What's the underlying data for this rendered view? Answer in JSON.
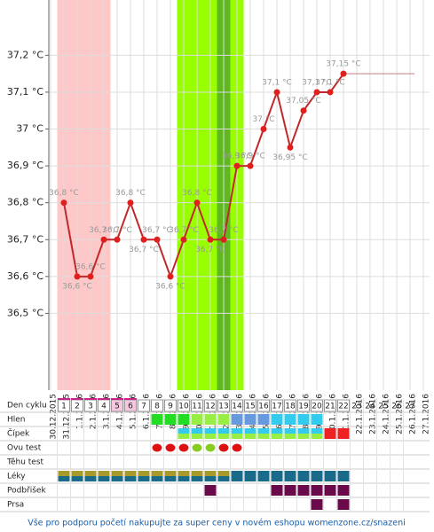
{
  "chart_data": {
    "type": "line",
    "categories": [
      "30.12.2015",
      "31.12.2015",
      "1.1.2016",
      "2.1.2016",
      "3.1.2016",
      "4.1.2016",
      "5.1.2016",
      "6.1.2016",
      "7.1.2016",
      "8.1.2016",
      "9.1.2016",
      "10.1.2016",
      "11.1.2016",
      "12.1.2016",
      "13.1.2016",
      "14.1.2016",
      "15.1.2016",
      "16.1.2016",
      "17.1.2016",
      "18.1.2016",
      "19.1.2016",
      "20.1.2016",
      "21.1.2016",
      "22.1.2016",
      "23.1.2016",
      "24.1.2016",
      "25.1.2016",
      "26.1.2016",
      "27.1.2016"
    ],
    "values": [
      null,
      36.8,
      36.6,
      36.6,
      36.7,
      36.7,
      36.8,
      36.7,
      36.7,
      36.6,
      36.7,
      36.8,
      36.7,
      36.7,
      36.9,
      36.9,
      37.0,
      37.1,
      36.95,
      37.05,
      37.1,
      37.1,
      37.15,
      null,
      null,
      null,
      null,
      null,
      null
    ],
    "value_labels": [
      null,
      "36,8 °C",
      "36,6 °C",
      "36,6 °C",
      "36,7 °C",
      "36,7 °C",
      "36,8 °C",
      "36,7 °C",
      "36,7 °C",
      "36,6 °C",
      "36,7 °C",
      "36,8 °C",
      "36,7 °C",
      "36,7 °C",
      "36,9 °C",
      "36,9 °C",
      "37 °C",
      "37,1 °C",
      "36,95 °C",
      "37,05 °C",
      "37,1 °C",
      "37,1 °C",
      "37,15 °C",
      null,
      null,
      null,
      null,
      null,
      null
    ],
    "color": "#c0282a",
    "ylim": [
      36.4,
      37.35
    ],
    "yticks": [
      {
        "value": 36.5,
        "label": "36,5 °C"
      },
      {
        "value": 36.6,
        "label": "36,6 °C"
      },
      {
        "value": 36.7,
        "label": "36,7 °C"
      },
      {
        "value": 36.8,
        "label": "36,8 °C"
      },
      {
        "value": 36.9,
        "label": "36,9 °C"
      },
      {
        "value": 37,
        "label": "37 °C"
      },
      {
        "value": 37.1,
        "label": "37,1 °C"
      },
      {
        "value": 37.2,
        "label": "37,2 °C"
      }
    ],
    "grid": true,
    "bands": [
      {
        "from": 1,
        "to": 4,
        "color": "#ffc8c8"
      },
      {
        "from": 10,
        "to": 14,
        "color": "#99ff00"
      },
      {
        "from": 13,
        "to": 13,
        "color": "#5fb81e"
      }
    ]
  },
  "table": {
    "days": [
      1,
      2,
      3,
      4,
      5,
      6,
      7,
      8,
      9,
      10,
      11,
      12,
      13,
      14,
      15,
      16,
      17,
      18,
      19,
      20,
      21,
      22,
      23,
      24,
      25,
      26,
      27
    ],
    "rows": [
      {
        "label": "Den cyklu"
      },
      {
        "label": "Hlen",
        "cells": [
          null,
          null,
          null,
          null,
          null,
          null,
          null,
          "#22dd22",
          "#22dd22",
          "#22dd22",
          "#99ee44",
          "#99ee44",
          "#99ee44",
          "#6699dd",
          "#6699dd",
          "#6699dd",
          "#33ccee",
          "#33ccee",
          "#33ccee",
          "#33ccee",
          null,
          null
        ]
      },
      {
        "label": "Čípek",
        "cells": [
          null,
          null,
          null,
          null,
          null,
          null,
          null,
          null,
          null,
          "#33ccee/#99ee44",
          "#33ccee/#99ee44",
          "#33ccee/#99ee44",
          "#33ccee/#99ee44",
          "#33ccee/#99ee44",
          "#33ccee/#99ee44",
          "#33ccee/#99ee44",
          "#33ccee/#99ee44",
          "#33ccee/#99ee44",
          "#33ccee/#99ee44",
          "#33ccee/#99ee44",
          "#ee2222/#ee2222",
          "#ee2222/#ee2222"
        ]
      },
      {
        "label": "Ovu test",
        "shape": "drop",
        "cells": [
          null,
          null,
          null,
          null,
          null,
          null,
          null,
          "#dd1111",
          "#dd1111",
          "#dd1111",
          "#88cc22",
          "#88cc22",
          "#dd1111",
          "#dd1111",
          null,
          null,
          null,
          null,
          null,
          null,
          null,
          null
        ]
      },
      {
        "label": "Těhu test"
      },
      {
        "label": "Léky",
        "cells": [
          "#a89a2a/#1a6a8a",
          "#a89a2a/#1a6a8a",
          "#a89a2a/#1a6a8a",
          "#a89a2a/#1a6a8a",
          "#a89a2a/#1a6a8a",
          "#a89a2a/#1a6a8a",
          "#a89a2a/#1a6a8a",
          "#a89a2a/#1a6a8a",
          "#a89a2a/#1a6a8a",
          "#a89a2a/#1a6a8a",
          "#a89a2a/#1a6a8a",
          "#a89a2a/#1a6a8a",
          "#a89a2a/#1a6a8a",
          "#1a6a8a/#1a6a8a",
          "#1a6a8a/#1a6a8a",
          "#1a6a8a/#1a6a8a",
          "#1a6a8a/#1a6a8a",
          "#1a6a8a/#1a6a8a",
          "#1a6a8a/#1a6a8a",
          "#1a6a8a/#1a6a8a",
          "#1a6a8a/#1a6a8a",
          "#1a6a8a/#1a6a8a"
        ]
      },
      {
        "label": "Podbřišek",
        "cells": [
          null,
          null,
          null,
          null,
          null,
          null,
          null,
          null,
          null,
          null,
          null,
          "#6a0a4a",
          null,
          null,
          null,
          null,
          "#6a0a4a",
          "#6a0a4a",
          "#6a0a4a",
          "#6a0a4a",
          "#6a0a4a",
          "#6a0a4a"
        ]
      },
      {
        "label": "Prsa",
        "cells": [
          null,
          null,
          null,
          null,
          null,
          null,
          null,
          null,
          null,
          null,
          null,
          null,
          null,
          null,
          null,
          null,
          null,
          null,
          null,
          "#6a0a4a",
          null,
          "#6a0a4a"
        ]
      }
    ]
  },
  "footer": "Vše pro podporu početí nakupujte za super ceny v novém eshopu womenzone.cz/snazeni"
}
